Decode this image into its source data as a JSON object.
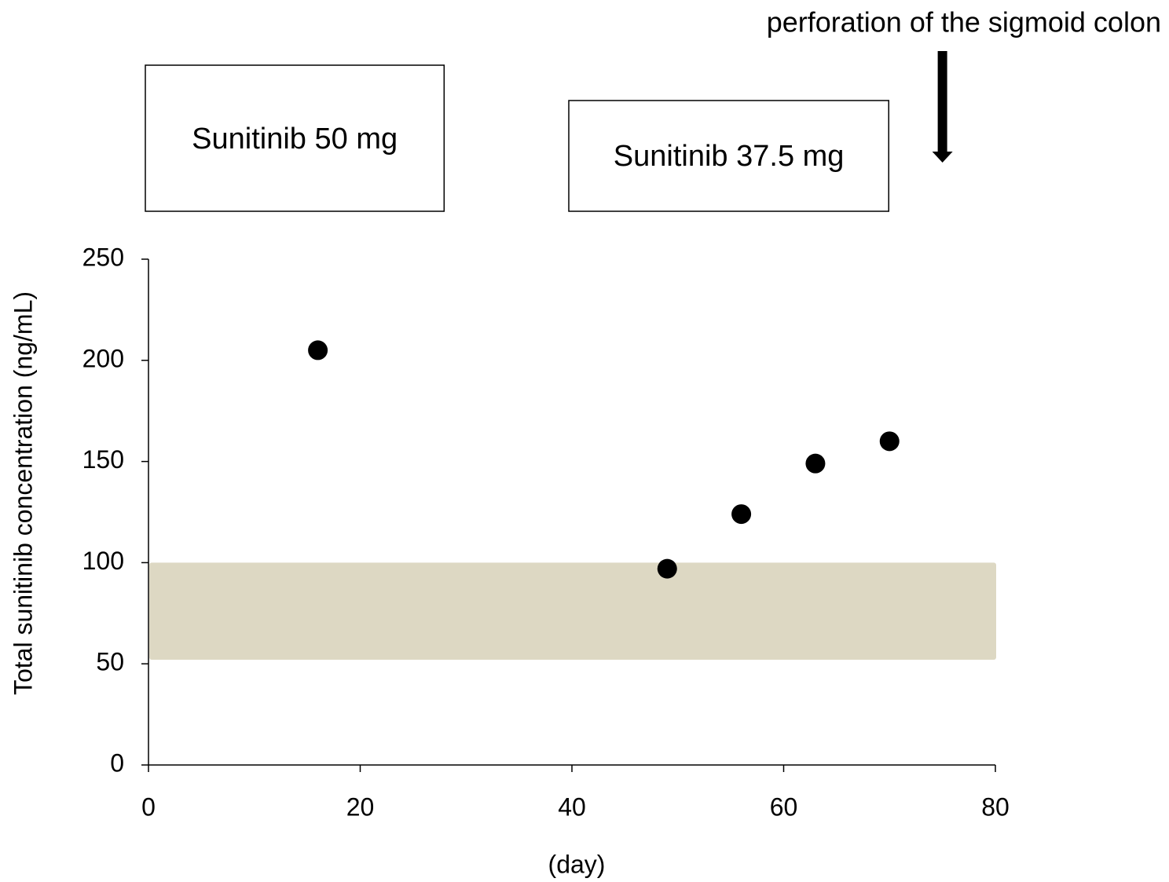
{
  "chart_data": {
    "type": "scatter",
    "x_label": "(day)",
    "y_label": "Total sunitinib concentration  (ng/mL)",
    "x": [
      16,
      49,
      56,
      63,
      70
    ],
    "values": [
      205,
      97,
      124,
      149,
      160
    ],
    "color": "#000000",
    "shaded_range": [
      52,
      100
    ],
    "shaded_color": "#ddd8c3",
    "xlim": [
      0,
      80
    ],
    "xticks": [
      0,
      20,
      40,
      60,
      80
    ],
    "ylim": [
      0,
      250
    ],
    "yticks": [
      0,
      50,
      100,
      150,
      200,
      250
    ],
    "dose_periods": [
      {
        "text": "Sunitinib 50 mg",
        "x": [
          0,
          28
        ]
      },
      {
        "text": "Sunitinib 37.5 mg",
        "x": [
          40,
          70
        ]
      }
    ],
    "event": {
      "text": "perforation of the sigmoid colon",
      "x": 75
    }
  }
}
